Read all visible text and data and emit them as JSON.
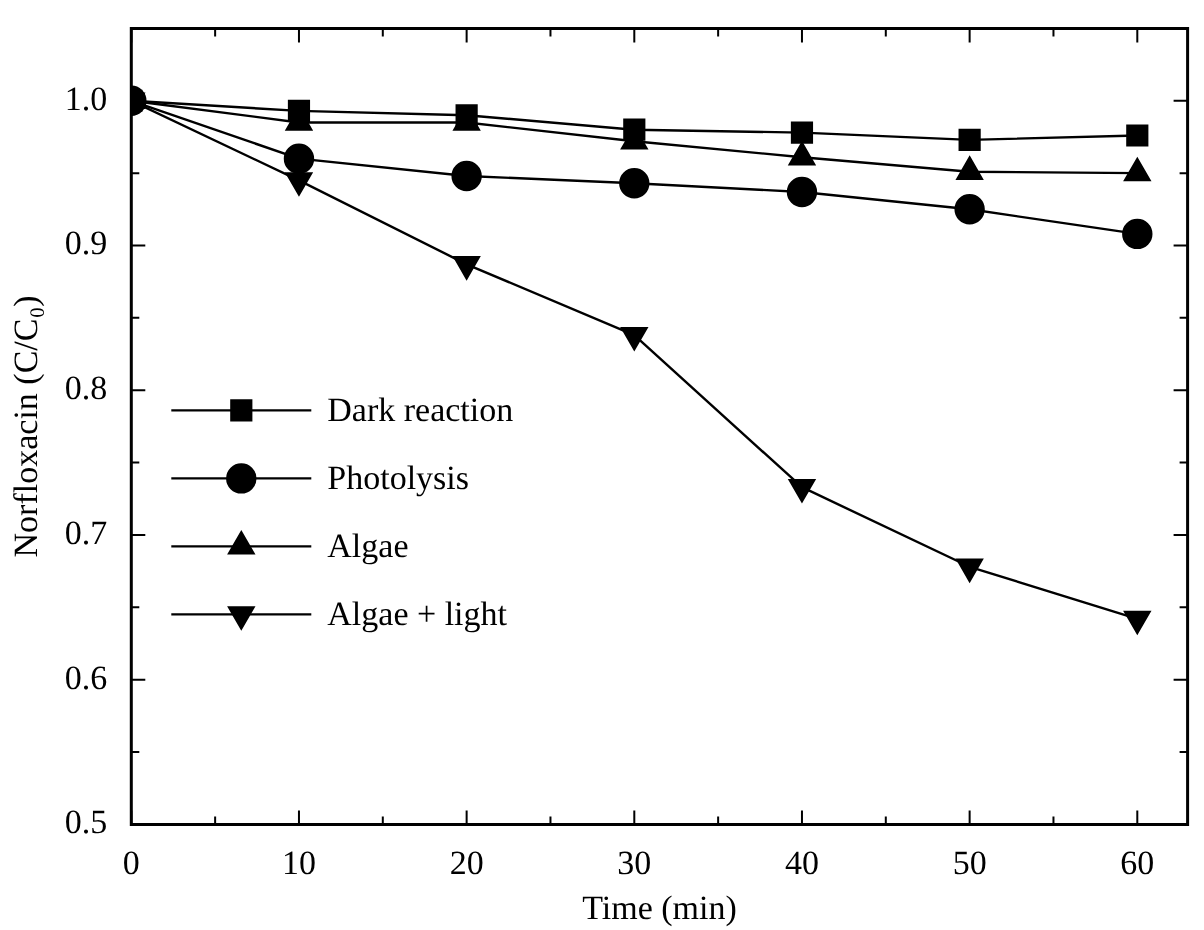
{
  "chart_data": {
    "type": "line",
    "xlabel": "Time (min)",
    "ylabel": "Norfloxacin (C/C₀)",
    "x": [
      0,
      10,
      20,
      30,
      40,
      50,
      60
    ],
    "series": [
      {
        "name": "Dark reaction",
        "color": "#000000",
        "marker": "square",
        "values": [
          1.0,
          0.993,
          0.99,
          0.98,
          0.978,
          0.973,
          0.976
        ]
      },
      {
        "name": "Photolysis",
        "color": "#000000",
        "marker": "circle",
        "values": [
          1.0,
          0.96,
          0.948,
          0.943,
          0.937,
          0.925,
          0.908
        ]
      },
      {
        "name": "Algae",
        "color": "#000000",
        "marker": "triangle",
        "values": [
          1.0,
          0.985,
          0.985,
          0.972,
          0.961,
          0.951,
          0.95
        ]
      },
      {
        "name": "Algae + light",
        "color": "#000000",
        "marker": "triangle-down",
        "values": [
          1.0,
          0.945,
          0.887,
          0.838,
          0.733,
          0.678,
          0.642
        ]
      }
    ],
    "xlim": [
      0,
      63
    ],
    "ylim": [
      0.5,
      1.05
    ],
    "xticks": [
      0,
      {
        "value": 5,
        "label": null
      },
      10,
      {
        "value": 15,
        "label": null
      },
      20,
      {
        "value": 25,
        "label": null
      },
      30,
      {
        "value": 35,
        "label": null
      },
      40,
      {
        "value": 45,
        "label": null
      },
      50,
      {
        "value": 55,
        "label": null
      },
      60
    ],
    "yticks": [
      0.5,
      {
        "value": 0.55,
        "label": null
      },
      0.6,
      {
        "value": 0.65,
        "label": null
      },
      0.7,
      {
        "value": 0.75,
        "label": null
      },
      0.8,
      {
        "value": 0.85,
        "label": null
      },
      0.9,
      {
        "value": 0.95,
        "label": null
      },
      {
        "value": 1.0,
        "label": "1.0"
      }
    ],
    "grid": false,
    "legend": "bottom left",
    "line_style": "solid"
  }
}
